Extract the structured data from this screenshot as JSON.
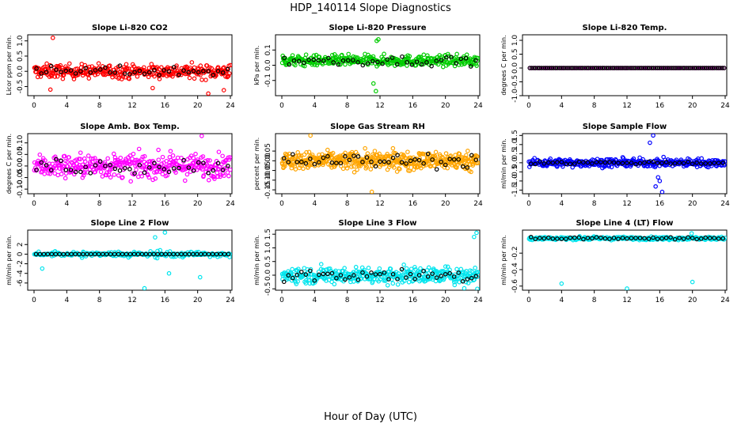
{
  "title": "HDP_140114  Slope Diagnostics",
  "xlabel": "Hour of Day (UTC)",
  "chart_data": [
    {
      "type": "scatter",
      "title": "Slope Li-820 CO2",
      "ylabel": "Licor ppm per min.",
      "xlim": [
        0,
        24
      ],
      "xticks": [
        0,
        4,
        8,
        12,
        16,
        20,
        24
      ],
      "ylim": [
        -0.8,
        1.2
      ],
      "yticks": [
        -0.5,
        0.0,
        0.5,
        1.0
      ],
      "ytick_labels": [
        "-0.5",
        "0.0",
        "0.5",
        "1.0"
      ],
      "color": "#ff0000",
      "center": 0.0,
      "spread": 0.22,
      "black_spread": 0.16,
      "n": 360,
      "black_n": 40,
      "outliers": [
        [
          2.3,
          1.1
        ],
        [
          21.3,
          -0.73
        ],
        [
          23.2,
          -0.62
        ],
        [
          14.5,
          -0.55
        ],
        [
          2.0,
          -0.6
        ]
      ]
    },
    {
      "type": "scatter",
      "title": "Slope Li-820 Pressure",
      "ylabel": "kPa per min.",
      "xlim": [
        0,
        24
      ],
      "xticks": [
        0,
        4,
        8,
        12,
        16,
        20,
        24
      ],
      "ylim": [
        -0.2,
        0.2
      ],
      "yticks": [
        -0.1,
        0.0,
        0.1
      ],
      "ytick_labels": [
        "-0.1",
        "0.0",
        "0.1"
      ],
      "color": "#00cc00",
      "center": 0.03,
      "spread": 0.035,
      "black_spread": 0.03,
      "n": 360,
      "black_n": 40,
      "outliers": [
        [
          11.8,
          0.17
        ],
        [
          11.5,
          -0.17
        ],
        [
          11.2,
          -0.12
        ],
        [
          11.6,
          0.16
        ]
      ]
    },
    {
      "type": "scatter",
      "title": "Slope Li-820 Temp.",
      "ylabel": "degrees C per min.",
      "xlim": [
        0,
        24
      ],
      "xticks": [
        0,
        4,
        8,
        12,
        16,
        20,
        24
      ],
      "ylim": [
        -1.0,
        1.2
      ],
      "yticks": [
        -1.0,
        -0.5,
        0.0,
        0.5,
        1.0
      ],
      "ytick_labels": [
        "-1.0",
        "-0.5",
        "0.0",
        "0.5",
        "1.0"
      ],
      "color": "#ff00ff",
      "center": 0.0,
      "spread": 0.0,
      "black_spread": 0.0,
      "n": 100,
      "black_n": 100,
      "line": true,
      "outliers": []
    },
    {
      "type": "scatter",
      "title": "Slope Amb. Box Temp.",
      "ylabel": "degrees C per min.",
      "xlim": [
        0,
        24
      ],
      "xticks": [
        0,
        4,
        8,
        12,
        16,
        20,
        24
      ],
      "ylim": [
        -0.12,
        0.14
      ],
      "yticks": [
        -0.1,
        -0.05,
        0.0,
        0.05,
        0.1
      ],
      "ytick_labels": [
        "-0.10",
        "-0.05",
        "0.00",
        "0.05",
        "0.10"
      ],
      "color": "#ff00ff",
      "center": 0.0,
      "spread": 0.05,
      "black_spread": 0.035,
      "n": 380,
      "black_n": 40,
      "outliers": [
        [
          20.5,
          0.13
        ]
      ]
    },
    {
      "type": "scatter",
      "title": "Slope Gas Stream RH",
      "ylabel": "percent per min.",
      "xlim": [
        0,
        24
      ],
      "xticks": [
        0,
        4,
        8,
        12,
        16,
        20,
        24
      ],
      "ylim": [
        -0.17,
        0.14
      ],
      "yticks": [
        -0.15,
        -0.1,
        -0.05,
        0.0,
        0.05
      ],
      "ytick_labels": [
        "-0.15",
        "-0.10",
        "-0.05",
        "0.00",
        "0.05"
      ],
      "color": "#ffa500",
      "center": 0.0,
      "spread": 0.045,
      "black_spread": 0.035,
      "n": 480,
      "black_n": 45,
      "outliers": [
        [
          11.0,
          -0.16
        ],
        [
          3.5,
          0.13
        ]
      ]
    },
    {
      "type": "scatter",
      "title": "Slope Sample Flow",
      "ylabel": "ml/min per min.",
      "xlim": [
        0,
        24
      ],
      "xticks": [
        0,
        4,
        8,
        12,
        16,
        20,
        24
      ],
      "ylim": [
        -1.7,
        1.6
      ],
      "yticks": [
        -1.5,
        -1.0,
        -0.5,
        0.0,
        0.5,
        1.0,
        1.5
      ],
      "ytick_labels": [
        "-1.5",
        "-1.0",
        "-0.5",
        "0.0",
        "0.5",
        "1.0",
        "1.5"
      ],
      "color": "#0000ff",
      "center": 0.0,
      "spread": 0.22,
      "black_spread": 0.08,
      "n": 380,
      "black_n": 45,
      "outliers": [
        [
          15.2,
          1.5
        ],
        [
          16.3,
          -1.6
        ],
        [
          15.5,
          -1.3
        ],
        [
          14.8,
          1.1
        ],
        [
          16.0,
          -1.0
        ],
        [
          15.8,
          -0.8
        ]
      ]
    },
    {
      "type": "scatter",
      "title": "Slope Line 2 Flow",
      "ylabel": "ml/min per min.",
      "xlim": [
        0,
        24
      ],
      "xticks": [
        0,
        4,
        8,
        12,
        16,
        20,
        24
      ],
      "ylim": [
        -7.5,
        5
      ],
      "yticks": [
        -6,
        -4,
        -2,
        0,
        2
      ],
      "ytick_labels": [
        "-6",
        "-4",
        "-2",
        "0",
        "2"
      ],
      "color": "#00e5ee",
      "center": 0.0,
      "spread": 0.6,
      "black_spread": 0.0,
      "n": 280,
      "black_n": 50,
      "line": true,
      "outliers": [
        [
          13.5,
          -7.1
        ],
        [
          16.0,
          4.5
        ],
        [
          20.3,
          -4.8
        ],
        [
          14.8,
          3.5
        ],
        [
          16.5,
          -4.0
        ],
        [
          1.0,
          -3.0
        ]
      ]
    },
    {
      "type": "scatter",
      "title": "Slope Line 3 Flow",
      "ylabel": "ml/min per min.",
      "xlim": [
        0,
        24
      ],
      "xticks": [
        0,
        4,
        8,
        12,
        16,
        20,
        24
      ],
      "ylim": [
        -0.55,
        1.65
      ],
      "yticks": [
        -0.5,
        0.0,
        0.5,
        1.0,
        1.5
      ],
      "ytick_labels": [
        "-0.5",
        "0.0",
        "0.5",
        "1.0",
        "1.5"
      ],
      "color": "#00e5ee",
      "center": 0.0,
      "spread": 0.3,
      "black_spread": 0.25,
      "n": 380,
      "black_n": 45,
      "outliers": [
        [
          23.8,
          1.55
        ],
        [
          23.5,
          1.4
        ],
        [
          22.3,
          -0.48
        ],
        [
          23.9,
          -0.5
        ]
      ]
    },
    {
      "type": "scatter",
      "title": "Slope Line 4 (LT) Flow",
      "ylabel": "ml/min per min.",
      "xlim": [
        0,
        24
      ],
      "xticks": [
        0,
        4,
        8,
        12,
        16,
        20,
        24
      ],
      "ylim": [
        -0.65,
        0.08
      ],
      "yticks": [
        -0.6,
        -0.4,
        -0.2
      ],
      "ytick_labels": [
        "-0.6",
        "-0.4",
        "-0.2"
      ],
      "color": "#00e5ee",
      "center": -0.02,
      "spread": 0.018,
      "black_spread": 0.015,
      "n": 320,
      "black_n": 45,
      "outliers": [
        [
          4.0,
          -0.57
        ],
        [
          12.0,
          -0.63
        ],
        [
          20.0,
          -0.55
        ],
        [
          19.9,
          0.04
        ]
      ]
    }
  ]
}
